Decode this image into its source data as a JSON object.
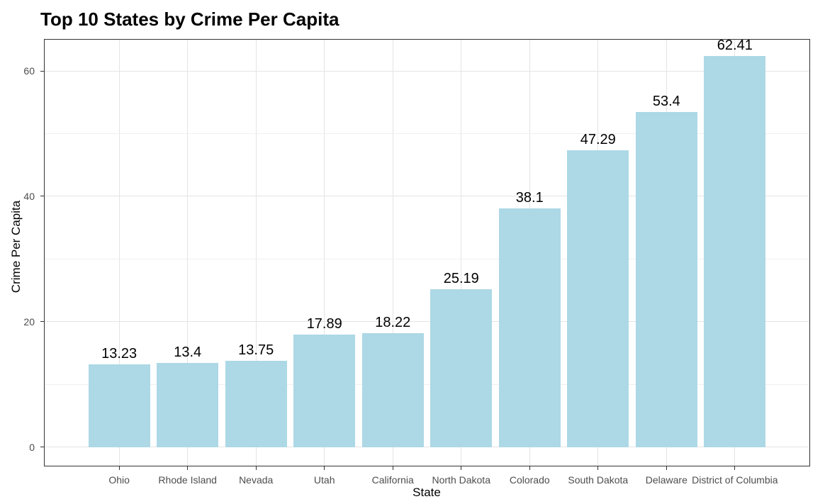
{
  "chart_data": {
    "type": "bar",
    "title": "Top 10 States by Crime Per Capita",
    "xlabel": "State",
    "ylabel": "Crime Per Capita",
    "categories": [
      "Ohio",
      "Rhode Island",
      "Nevada",
      "Utah",
      "California",
      "North Dakota",
      "Colorado",
      "South Dakota",
      "Delaware",
      "District of Columbia"
    ],
    "values": [
      13.23,
      13.4,
      13.75,
      17.89,
      18.22,
      25.19,
      38.1,
      47.29,
      53.4,
      62.41
    ],
    "value_labels": [
      "13.23",
      "13.4",
      "13.75",
      "17.89",
      "18.22",
      "25.19",
      "38.1",
      "47.29",
      "53.4",
      "62.41"
    ],
    "y_ticks": [
      0,
      20,
      40,
      60
    ],
    "y_tick_labels": [
      "0",
      "20",
      "40",
      "60"
    ],
    "y_minor_ticks": [
      10,
      30,
      50
    ],
    "ylim": [
      -3.09,
      65.09
    ],
    "grid": true,
    "legend": false,
    "colors": {
      "bar_fill": "#ADD8E6",
      "panel_border": "#333333",
      "grid_major": "#e4e4e4",
      "grid_minor": "#f0f0f0",
      "tick_text": "#4d4d4d",
      "title_text": "#000000"
    }
  }
}
